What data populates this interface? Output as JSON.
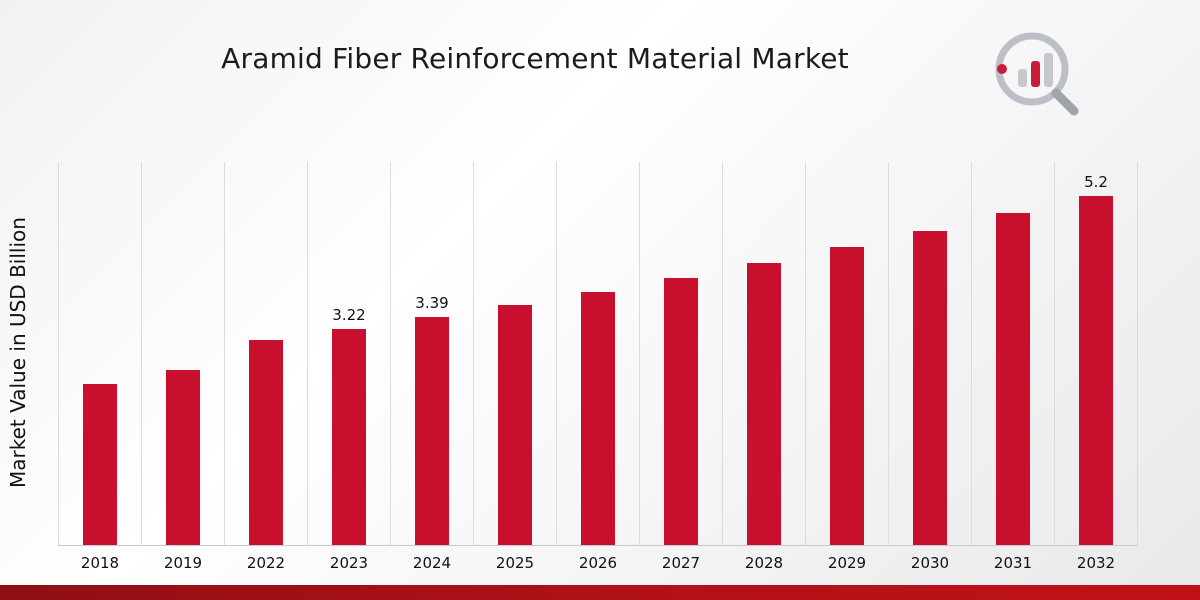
{
  "page": {
    "title": "Aramid Fiber Reinforcement Material Market"
  },
  "chart_data": {
    "type": "bar",
    "title": "Aramid Fiber Reinforcement Material Market",
    "xlabel": "",
    "ylabel": "Market Value in USD Billion",
    "categories": [
      "2018",
      "2019",
      "2022",
      "2023",
      "2024",
      "2025",
      "2026",
      "2027",
      "2028",
      "2029",
      "2030",
      "2031",
      "2032"
    ],
    "values": [
      2.4,
      2.6,
      3.05,
      3.22,
      3.39,
      3.57,
      3.77,
      3.98,
      4.2,
      4.43,
      4.67,
      4.94,
      5.2
    ],
    "data_labels": [
      "",
      "",
      "",
      "3.22",
      "3.39",
      "",
      "",
      "",
      "",
      "",
      "",
      "",
      "5.2"
    ],
    "ylim": [
      0,
      5.7
    ],
    "grid": "vertical-only",
    "legend": "none",
    "bar_color": "#c8102e"
  },
  "branding": {
    "logo": "chart-magnifier-logo"
  },
  "colors": {
    "bar": "#c8102e",
    "footer_stripe": "#a31016",
    "gridline": "#dcdcde",
    "text": "#111111"
  }
}
